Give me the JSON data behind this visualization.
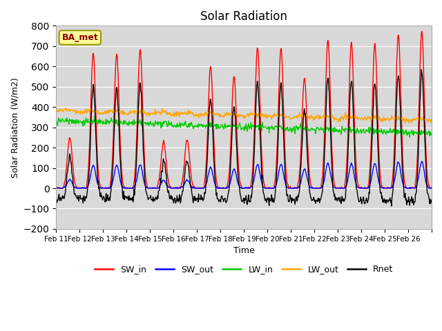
{
  "title": "Solar Radiation",
  "xlabel": "Time",
  "ylabel": "Solar Radiation (W/m2)",
  "ylim": [
    -200,
    800
  ],
  "yticks": [
    -200,
    -100,
    0,
    100,
    200,
    300,
    400,
    500,
    600,
    700,
    800
  ],
  "x_labels": [
    "Feb 11",
    "Feb 12",
    "Feb 13",
    "Feb 14",
    "Feb 15",
    "Feb 16",
    "Feb 17",
    "Feb 18",
    "Feb 19",
    "Feb 20",
    "Feb 21",
    "Feb 22",
    "Feb 23",
    "Feb 24",
    "Feb 25",
    "Feb 26",
    ""
  ],
  "station_label": "BA_met",
  "colors": {
    "SW_in": "#FF0000",
    "SW_out": "#0000FF",
    "LW_in": "#00CC00",
    "LW_out": "#FFA500",
    "Rnet": "#000000"
  },
  "background_color": "#D8D8D8",
  "line_width": 1.0,
  "sw_in_peaks": [
    250,
    665,
    660,
    685,
    230,
    240,
    600,
    550,
    695,
    690,
    545,
    730,
    715,
    710,
    755,
    775
  ],
  "n_days": 16,
  "pts_per_day": 48
}
